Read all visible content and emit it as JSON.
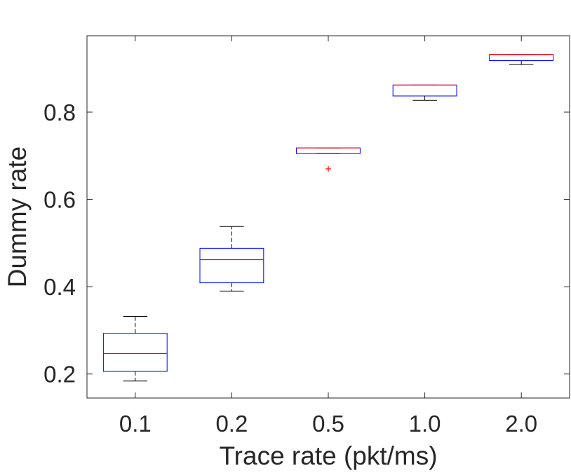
{
  "chart_data": {
    "type": "boxplot",
    "title": "",
    "xlabel": "Trace rate (pkt/ms)",
    "ylabel": "Dummy rate",
    "categories": [
      "0.1",
      "0.2",
      "0.5",
      "1.0",
      "2.0"
    ],
    "ylim": [
      0.145,
      0.975
    ],
    "yticks": [
      0.2,
      0.4,
      0.6,
      0.8
    ],
    "ytick_labels": [
      "0.2",
      "0.4",
      "0.6",
      "0.8"
    ],
    "boxes": [
      {
        "category": "0.1",
        "whisker_low": 0.184,
        "q1": 0.206,
        "median": 0.247,
        "q3": 0.293,
        "whisker_high": 0.332,
        "outliers": []
      },
      {
        "category": "0.2",
        "whisker_low": 0.39,
        "q1": 0.409,
        "median": 0.462,
        "q3": 0.488,
        "whisker_high": 0.538,
        "outliers": []
      },
      {
        "category": "0.5",
        "whisker_low": 0.705,
        "q1": 0.705,
        "median": 0.718,
        "q3": 0.718,
        "whisker_high": 0.718,
        "outliers": [
          0.67
        ]
      },
      {
        "category": "1.0",
        "whisker_low": 0.827,
        "q1": 0.837,
        "median": 0.862,
        "q3": 0.862,
        "whisker_high": 0.862,
        "outliers": []
      },
      {
        "category": "2.0",
        "whisker_low": 0.909,
        "q1": 0.918,
        "median": 0.932,
        "q3": 0.932,
        "whisker_high": 0.932,
        "outliers": []
      }
    ],
    "colors": {
      "box": "#0000ff",
      "median": "#ff0000",
      "whisker": "#000000",
      "outlier": "#ff0000",
      "axes": "#262626"
    },
    "grid": false,
    "box_frame": true
  }
}
